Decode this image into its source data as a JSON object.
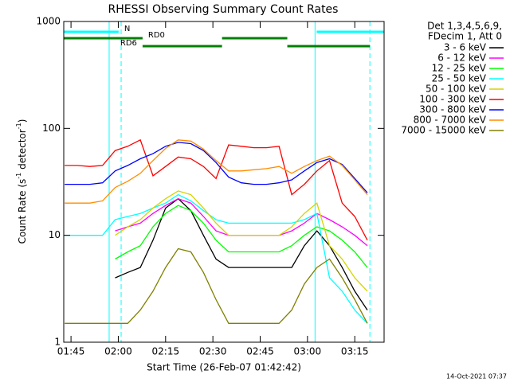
{
  "chart_data": {
    "type": "line",
    "title": "RHESSI Observing Summary Count Rates",
    "x_label": "Start Time (26-Feb-07 01:42:42)",
    "y_label_parts": [
      "Count Rate (s",
      "-1",
      " detector",
      "-1",
      ")"
    ],
    "footer": "14-Oct-2021 07:37",
    "legend_header": [
      "Det 1,3,4,5,6,9,",
      "FDecim 1, Att 0"
    ],
    "log_y": true,
    "xlim": [
      102.7,
      204.3
    ],
    "xticks": [
      {
        "value": 105,
        "label": "01:45"
      },
      {
        "value": 120,
        "label": "02:00"
      },
      {
        "value": 135,
        "label": "02:15"
      },
      {
        "value": 150,
        "label": "02:30"
      },
      {
        "value": 165,
        "label": "02:45"
      },
      {
        "value": 180,
        "label": "03:00"
      },
      {
        "value": 195,
        "label": "03:15"
      }
    ],
    "ylim": [
      1,
      1000
    ],
    "yticks": [
      1,
      10,
      100,
      1000
    ],
    "x": [
      103,
      107,
      111,
      115,
      119,
      123,
      127,
      131,
      135,
      139,
      143,
      147,
      151,
      155,
      159,
      163,
      167,
      171,
      175,
      179,
      183,
      187,
      191,
      195,
      199
    ],
    "series": [
      {
        "name": "3 - 6 keV",
        "color": "#000000",
        "values": [
          null,
          null,
          null,
          null,
          4,
          4.5,
          5,
          9,
          18,
          22,
          17,
          10,
          6,
          5,
          5,
          5,
          5,
          5,
          5,
          8,
          11,
          8,
          5,
          3,
          2
        ]
      },
      {
        "name": "6 - 12 keV",
        "color": "#ff00ff",
        "values": [
          null,
          null,
          null,
          null,
          11,
          12,
          13,
          16,
          19,
          22,
          20,
          15,
          11,
          10,
          10,
          10,
          10,
          10,
          11,
          13,
          16,
          14,
          12,
          10,
          8
        ]
      },
      {
        "name": "12 - 25 keV",
        "color": "#00ff00",
        "values": [
          null,
          null,
          null,
          null,
          6,
          7,
          8,
          12,
          16,
          19,
          17,
          13,
          9,
          7,
          7,
          7,
          7,
          7,
          8,
          10,
          12,
          11,
          9,
          7,
          5
        ]
      },
      {
        "name": "25 - 50 keV",
        "color": "#00ffff",
        "values": [
          10,
          10,
          10,
          10,
          14,
          15,
          16,
          18,
          20,
          24,
          21,
          17,
          14,
          13,
          13,
          13,
          13,
          13,
          13,
          14,
          16,
          4,
          3,
          2,
          1.5
        ]
      },
      {
        "name": "50 - 100 keV",
        "color": "#d4d400",
        "values": [
          null,
          null,
          null,
          null,
          10,
          12,
          14,
          18,
          22,
          26,
          24,
          18,
          13,
          10,
          10,
          10,
          10,
          10,
          12,
          16,
          20,
          8,
          6,
          4,
          3
        ]
      },
      {
        "name": "100 - 300 keV",
        "color": "#ff0000",
        "values": [
          45,
          45,
          44,
          45,
          62,
          68,
          78,
          36,
          44,
          54,
          52,
          44,
          34,
          70,
          68,
          66,
          66,
          68,
          24,
          30,
          40,
          50,
          20,
          15,
          9
        ]
      },
      {
        "name": "300 - 800 keV",
        "color": "#0000ff",
        "values": [
          30,
          30,
          30,
          31,
          40,
          45,
          52,
          58,
          68,
          74,
          72,
          62,
          48,
          35,
          31,
          30,
          30,
          31,
          33,
          40,
          48,
          52,
          46,
          34,
          25
        ]
      },
      {
        "name": "800 - 7000 keV",
        "color": "#ff8c00",
        "values": [
          20,
          20,
          20,
          21,
          28,
          32,
          38,
          50,
          65,
          78,
          76,
          64,
          50,
          40,
          40,
          41,
          42,
          44,
          38,
          44,
          50,
          55,
          45,
          33,
          24
        ]
      },
      {
        "name": "7000 - 15000 keV",
        "color": "#808000",
        "values": [
          1.5,
          1.5,
          1.5,
          1.5,
          1.5,
          1.5,
          2,
          3,
          5,
          7.5,
          7,
          4.5,
          2.5,
          1.5,
          1.5,
          1.5,
          1.5,
          1.5,
          2,
          3.5,
          5,
          6,
          4,
          2.5,
          1.5
        ]
      }
    ],
    "flags": [
      {
        "label": "N",
        "color": "#00ffff",
        "ranges": [
          [
            102.7,
            120.1
          ],
          [
            182.9,
            204.3
          ]
        ]
      },
      {
        "label": "RD0",
        "color": "#008000",
        "ranges": [
          [
            102.7,
            127.7
          ],
          [
            152.9,
            173.6
          ]
        ]
      },
      {
        "label": "RD6",
        "color": "#008000",
        "ranges": [
          [
            127.7,
            152.9
          ],
          [
            173.6,
            199.8
          ]
        ]
      }
    ],
    "night_lines": {
      "color": "#00ffff",
      "solid": [
        117.1,
        182.4
      ],
      "dashed": [
        120.9,
        199.8
      ]
    }
  }
}
